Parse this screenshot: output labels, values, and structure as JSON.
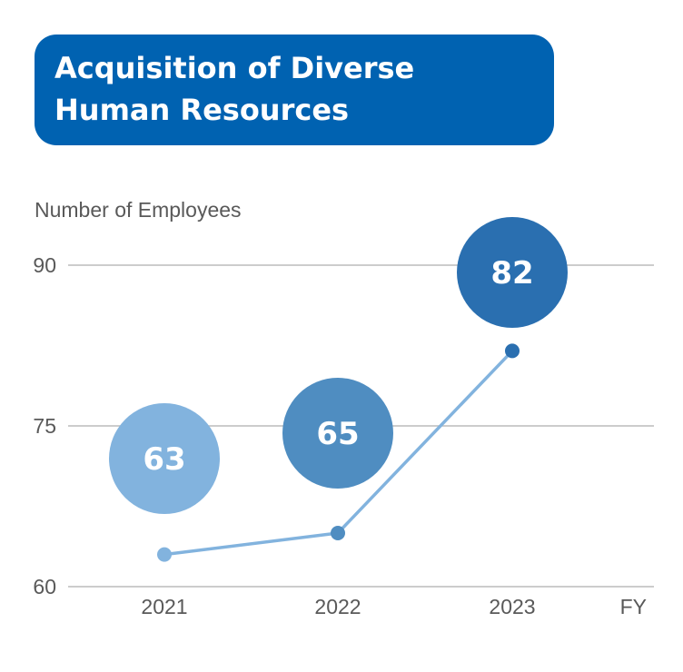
{
  "title": "Acquisition of Diverse Human Resources",
  "chart_data": {
    "type": "line",
    "ylabel": "Number of Employees",
    "xlabel": "FY",
    "categories": [
      "2021",
      "2022",
      "2023"
    ],
    "values": [
      63,
      65,
      82
    ],
    "value_labels": [
      "63",
      "65",
      "82"
    ],
    "ylim": [
      60,
      90
    ],
    "yticks": [
      "60",
      "75",
      "90"
    ],
    "grid": true,
    "colors": {
      "title_bg": "#0062b1",
      "line": "#82b3de",
      "bubbles": [
        "#82b3de",
        "#4f8dc1",
        "#2a6fb0"
      ],
      "points": [
        "#82b3de",
        "#4f8dc1",
        "#2a6fb0"
      ],
      "grid": "#bbbbbb"
    }
  }
}
